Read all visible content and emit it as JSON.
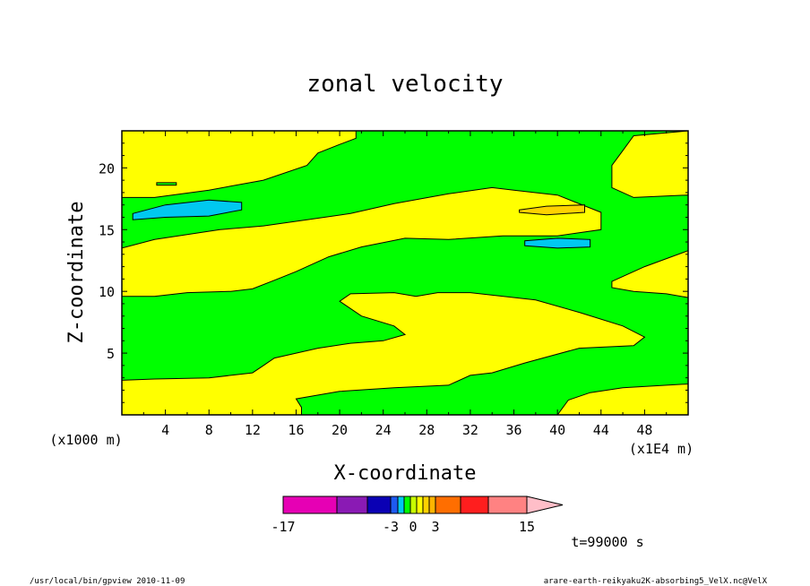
{
  "chart_data": {
    "type": "contour",
    "title": "zonal velocity",
    "xlabel": "X-coordinate",
    "ylabel": "Z-coordinate",
    "x_unit_note": "(x1E4 m)",
    "y_unit_note": "(x1000 m)",
    "xlim": [
      0,
      52
    ],
    "ylim": [
      0,
      23
    ],
    "x_ticks": [
      4,
      8,
      12,
      16,
      20,
      24,
      28,
      32,
      36,
      40,
      44,
      48
    ],
    "y_ticks": [
      5,
      10,
      15,
      20
    ],
    "time_label": "t=99000 s",
    "colorbar": {
      "levels": [
        -17,
        -11,
        -7,
        -4,
        -3,
        -2,
        -1,
        0,
        1,
        2,
        3,
        5,
        8,
        11,
        15
      ],
      "colors": [
        "#e600b4",
        "#8a1ab4",
        "#0a00b4",
        "#1e5af0",
        "#00c8f0",
        "#00ff00",
        "#c8ff00",
        "#ffff00",
        "#ffd200",
        "#ffb400",
        "#ff6e00",
        "#ff1e1e",
        "#ff8282",
        "#ffbec8"
      ],
      "tick_labels": [
        {
          "value": -17,
          "label": "-17"
        },
        {
          "value": -3,
          "label": "-3"
        },
        {
          "value": 0,
          "label": "0"
        },
        {
          "value": 3,
          "label": "3"
        },
        {
          "value": 15,
          "label": "15"
        }
      ]
    },
    "regions": [
      {
        "fill": "#ffff00",
        "description": "positive (0 to 1)",
        "path": [
          [
            0,
            0
          ],
          [
            52,
            0
          ],
          [
            52,
            23
          ],
          [
            0,
            23
          ]
        ]
      },
      {
        "fill": "#00ff00",
        "path": [
          [
            0,
            2.8
          ],
          [
            3,
            2.9
          ],
          [
            8,
            3
          ],
          [
            12,
            3.4
          ],
          [
            13,
            4
          ],
          [
            14,
            4.6
          ],
          [
            16,
            5
          ],
          [
            18,
            5.4
          ],
          [
            21,
            5.8
          ],
          [
            24,
            6
          ],
          [
            26,
            6.5
          ],
          [
            25,
            7.2
          ],
          [
            22,
            8
          ],
          [
            20,
            9.2
          ],
          [
            21,
            9.8
          ],
          [
            25,
            9.9
          ],
          [
            27,
            9.6
          ],
          [
            29,
            9.9
          ],
          [
            32,
            9.9
          ],
          [
            38,
            9.3
          ],
          [
            42,
            8.3
          ],
          [
            46,
            7.2
          ],
          [
            48,
            6.3
          ],
          [
            47,
            5.6
          ],
          [
            42,
            5.4
          ],
          [
            37,
            4.2
          ],
          [
            34,
            3.4
          ],
          [
            32,
            3.2
          ],
          [
            30,
            2.4
          ],
          [
            25,
            2.2
          ],
          [
            20,
            1.9
          ],
          [
            16,
            1.3
          ],
          [
            16.5,
            0.6
          ],
          [
            16.5,
            0
          ],
          [
            52,
            0
          ],
          [
            52,
            0
          ],
          [
            40,
            0
          ],
          [
            41,
            1.2
          ],
          [
            43,
            1.8
          ],
          [
            46,
            2.2
          ],
          [
            52,
            2.5
          ],
          [
            52,
            9.5
          ],
          [
            50,
            9.8
          ],
          [
            47,
            10
          ],
          [
            45,
            10.3
          ],
          [
            45,
            10.8
          ],
          [
            48,
            12
          ],
          [
            52,
            13.3
          ],
          [
            52,
            17.8
          ],
          [
            47,
            17.6
          ],
          [
            45,
            18.4
          ],
          [
            45,
            20.2
          ],
          [
            46,
            21.4
          ],
          [
            47,
            22.6
          ],
          [
            52,
            23
          ],
          [
            21.5,
            23
          ],
          [
            21.5,
            22.4
          ],
          [
            20,
            21.9
          ],
          [
            18,
            21.2
          ],
          [
            17,
            20.2
          ],
          [
            13,
            19
          ],
          [
            8,
            18.2
          ],
          [
            3,
            17.6
          ],
          [
            0,
            17.6
          ],
          [
            0,
            13.5
          ],
          [
            3,
            14.2
          ],
          [
            6,
            14.6
          ],
          [
            9,
            15
          ],
          [
            13,
            15.3
          ],
          [
            17,
            15.8
          ],
          [
            21,
            16.3
          ],
          [
            25,
            17.1
          ],
          [
            30,
            17.9
          ],
          [
            34,
            18.4
          ],
          [
            36,
            18.2
          ],
          [
            40,
            17.8
          ],
          [
            44,
            16.4
          ],
          [
            44,
            15
          ],
          [
            40,
            14.5
          ],
          [
            35,
            14.5
          ],
          [
            30,
            14.2
          ],
          [
            26,
            14.3
          ],
          [
            22,
            13.6
          ],
          [
            19,
            12.8
          ],
          [
            16,
            11.6
          ],
          [
            14,
            10.9
          ],
          [
            12,
            10.2
          ],
          [
            10,
            10
          ],
          [
            6,
            9.9
          ],
          [
            3,
            9.6
          ],
          [
            0,
            9.6
          ]
        ]
      },
      {
        "fill": "#00c8f0",
        "path": [
          [
            1,
            16.3
          ],
          [
            4,
            17
          ],
          [
            8,
            17.4
          ],
          [
            11,
            17.2
          ],
          [
            11,
            16.6
          ],
          [
            8,
            16.1
          ],
          [
            4,
            16
          ],
          [
            1,
            15.8
          ]
        ]
      },
      {
        "fill": "#00c8f0",
        "path": [
          [
            37,
            13.7
          ],
          [
            40,
            13.5
          ],
          [
            43,
            13.6
          ],
          [
            43,
            14.2
          ],
          [
            40,
            14.3
          ],
          [
            37,
            14.1
          ]
        ]
      },
      {
        "fill": "#ffd200",
        "path": [
          [
            36.5,
            16.6
          ],
          [
            39,
            16.9
          ],
          [
            42.5,
            17
          ],
          [
            42.5,
            16.4
          ],
          [
            39,
            16.2
          ],
          [
            36.5,
            16.4
          ]
        ]
      },
      {
        "fill": "#00ff00",
        "path": [
          [
            3.2,
            18.6
          ],
          [
            5,
            18.6
          ],
          [
            5,
            18.8
          ],
          [
            3.2,
            18.8
          ]
        ]
      }
    ]
  },
  "footer": {
    "left": "/usr/local/bin/gpview   2010-11-09",
    "right": "arare-earth-reikyaku2K-absorbing5_VelX.nc@VelX"
  }
}
